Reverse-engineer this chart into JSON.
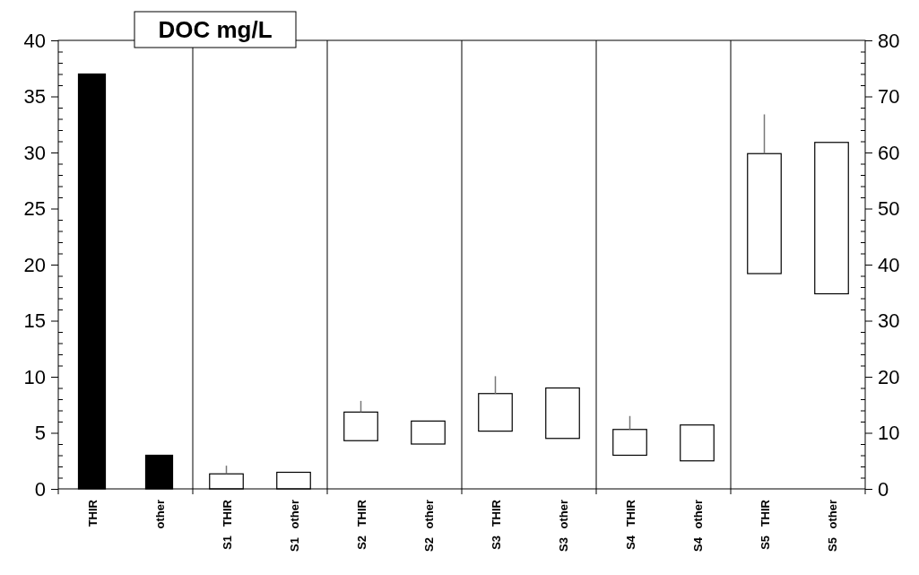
{
  "chart_data": {
    "type": "bar",
    "title": "DOC mg/L",
    "categories": [
      "THIR",
      "other",
      "S1 THIR",
      "S1 other",
      "S2 THIR",
      "S2 other",
      "S3 THIR",
      "S3 other",
      "S4 THIR",
      "S4 other",
      "S5 THIR",
      "S5 other"
    ],
    "series": [
      {
        "color": "#000000",
        "values": [
          37,
          3,
          null,
          null,
          null,
          null,
          null,
          null,
          null,
          null,
          null,
          null
        ]
      },
      {
        "color": "#ffffff",
        "base": [
          null,
          null,
          0,
          0,
          4.3,
          4.0,
          5.15,
          4.5,
          3.0,
          2.5,
          19.2,
          17.4
        ],
        "values": [
          null,
          null,
          1.34,
          1.48,
          2.55,
          2.05,
          3.35,
          4.5,
          2.3,
          3.2,
          10.7,
          13.5
        ],
        "errors": [
          null,
          null,
          [
            1.34,
            2.07
          ],
          null,
          [
            6.85,
            7.85
          ],
          null,
          [
            8.5,
            10.05
          ],
          null,
          [
            5.3,
            6.5
          ],
          null,
          [
            29.9,
            33.4
          ],
          null
        ]
      }
    ],
    "ylim": [
      0,
      40
    ],
    "yticks": [
      0,
      {
        "value": 1,
        "label": null
      },
      {
        "value": 2,
        "label": null
      },
      {
        "value": 3,
        "label": null
      },
      {
        "value": 4,
        "label": null
      },
      5,
      {
        "value": 6,
        "label": null
      },
      {
        "value": 7,
        "label": null
      },
      {
        "value": 8,
        "label": null
      },
      {
        "value": 9,
        "label": null
      },
      10,
      {
        "value": 11,
        "label": null
      },
      {
        "value": 12,
        "label": null
      },
      {
        "value": 13,
        "label": null
      },
      {
        "value": 14,
        "label": null
      },
      15,
      {
        "value": 16,
        "label": null
      },
      {
        "value": 17,
        "label": null
      },
      {
        "value": 18,
        "label": null
      },
      {
        "value": 19,
        "label": null
      },
      20,
      {
        "value": 21,
        "label": null
      },
      {
        "value": 22,
        "label": null
      },
      {
        "value": 23,
        "label": null
      },
      {
        "value": 24,
        "label": null
      },
      25,
      {
        "value": 26,
        "label": null
      },
      {
        "value": 27,
        "label": null
      },
      {
        "value": 28,
        "label": null
      },
      {
        "value": 29,
        "label": null
      },
      30,
      {
        "value": 31,
        "label": null
      },
      {
        "value": 32,
        "label": null
      },
      {
        "value": 33,
        "label": null
      },
      {
        "value": 34,
        "label": null
      },
      35,
      {
        "value": 36,
        "label": null
      },
      {
        "value": 37,
        "label": null
      },
      {
        "value": 38,
        "label": null
      },
      {
        "value": 39,
        "label": null
      },
      40
    ],
    "y2lim": [
      0,
      80
    ],
    "y2ticks": [
      0,
      {
        "value": 2,
        "label": null
      },
      {
        "value": 4,
        "label": null
      },
      {
        "value": 6,
        "label": null
      },
      {
        "value": 8,
        "label": null
      },
      10,
      {
        "value": 12,
        "label": null
      },
      {
        "value": 14,
        "label": null
      },
      {
        "value": 16,
        "label": null
      },
      {
        "value": 18,
        "label": null
      },
      20,
      {
        "value": 22,
        "label": null
      },
      {
        "value": 24,
        "label": null
      },
      {
        "value": 26,
        "label": null
      },
      {
        "value": 28,
        "label": null
      },
      30,
      {
        "value": 32,
        "label": null
      },
      {
        "value": 34,
        "label": null
      },
      {
        "value": 36,
        "label": null
      },
      {
        "value": 38,
        "label": null
      },
      40,
      {
        "value": 42,
        "label": null
      },
      {
        "value": 44,
        "label": null
      },
      {
        "value": 46,
        "label": null
      },
      {
        "value": 48,
        "label": null
      },
      50,
      {
        "value": 52,
        "label": null
      },
      {
        "value": 54,
        "label": null
      },
      {
        "value": 56,
        "label": null
      },
      {
        "value": 58,
        "label": null
      },
      60,
      {
        "value": 62,
        "label": null
      },
      {
        "value": 64,
        "label": null
      },
      {
        "value": 66,
        "label": null
      },
      {
        "value": 68,
        "label": null
      },
      70,
      {
        "value": 72,
        "label": null
      },
      {
        "value": 74,
        "label": null
      },
      {
        "value": 76,
        "label": null
      },
      {
        "value": 78,
        "label": null
      },
      80
    ],
    "grid": false
  }
}
